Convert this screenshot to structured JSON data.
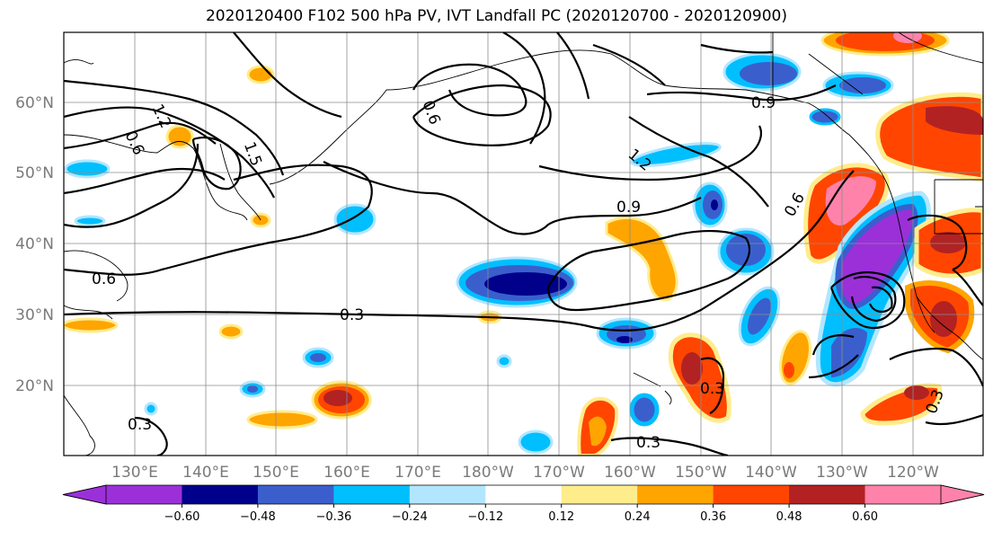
{
  "title": "2020120400 F102 500 hPa PV, IVT Landfall PC (2020120700 - 2020120900)",
  "lat_labels": [
    "60°N",
    "50°N",
    "40°N",
    "30°N",
    "20°N"
  ],
  "lon_labels": [
    "130°E",
    "140°E",
    "150°E",
    "160°E",
    "170°E",
    "180°W",
    "170°W",
    "160°W",
    "150°W",
    "140°W",
    "130°W",
    "120°W"
  ],
  "colorbar": {
    "colors": [
      "#9b30d9",
      "#00008b",
      "#3a5fcd",
      "#00bfff",
      "#b2e6ff",
      "#ffffff",
      "#ffec8b",
      "#ffa500",
      "#ff4500",
      "#b22222",
      "#ff82ab"
    ],
    "tick_labels": [
      "−0.60",
      "−0.48",
      "−0.36",
      "−0.24",
      "−0.12",
      "0.12",
      "0.24",
      "0.36",
      "0.48",
      "0.60"
    ]
  },
  "contour_labels": [
    "0.3",
    "0.3",
    "0.3",
    "0.3",
    "0.6",
    "0.6",
    "0.6",
    "0.6",
    "0.9",
    "0.9",
    "1.2",
    "1.2",
    "1.5",
    "0.3"
  ]
}
